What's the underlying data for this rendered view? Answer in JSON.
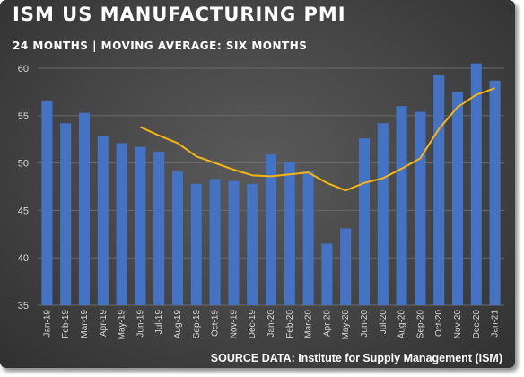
{
  "header": {
    "title": "ISM US MANUFACTURING PMI",
    "subtitle": "24 MONTHS | MOVING AVERAGE: SIX MONTHS"
  },
  "footer": {
    "source": "SOURCE DATA: Institute for Supply Management (ISM)"
  },
  "colors": {
    "bar": "#4472c4",
    "moving_average": "#f5b514",
    "gridline": "#6a6a6a",
    "background": "#474747",
    "text": "#ffffff"
  },
  "chart_data": {
    "type": "bar",
    "title": "ISM US MANUFACTURING PMI",
    "subtitle": "24 MONTHS | MOVING AVERAGE: SIX MONTHS",
    "categories": [
      "Jan-19",
      "Feb-19",
      "Mar-19",
      "Apr-19",
      "May-19",
      "Jun-19",
      "Jul-19",
      "Aug-19",
      "Sep-19",
      "Oct-19",
      "Nov-19",
      "Dec-19",
      "Jan-20",
      "Feb-20",
      "Mar-20",
      "Apr-20",
      "May-20",
      "Jun-20",
      "Jul-20",
      "Aug-20",
      "Sep-20",
      "Oct-20",
      "Nov-20",
      "Dec-20",
      "Jan-21"
    ],
    "series": [
      {
        "type": "bar",
        "values": [
          56.6,
          54.2,
          55.3,
          52.8,
          52.1,
          51.7,
          51.2,
          49.1,
          47.8,
          48.3,
          48.1,
          47.8,
          50.9,
          50.1,
          49.1,
          41.5,
          43.1,
          52.6,
          54.2,
          56.0,
          55.4,
          59.3,
          57.5,
          60.5,
          58.7
        ]
      },
      {
        "type": "line",
        "values": [
          null,
          null,
          null,
          null,
          null,
          53.8,
          52.9,
          52.1,
          50.7,
          50.0,
          49.3,
          48.7,
          48.6,
          48.8,
          49.0,
          47.9,
          47.1,
          47.9,
          48.4,
          49.4,
          50.5,
          53.6,
          55.9,
          57.2,
          57.9
        ]
      }
    ],
    "ylim": [
      35,
      60
    ],
    "yticks": [
      35,
      40,
      45,
      50,
      55,
      60
    ],
    "grid": true,
    "xlabel": "",
    "ylabel": ""
  }
}
